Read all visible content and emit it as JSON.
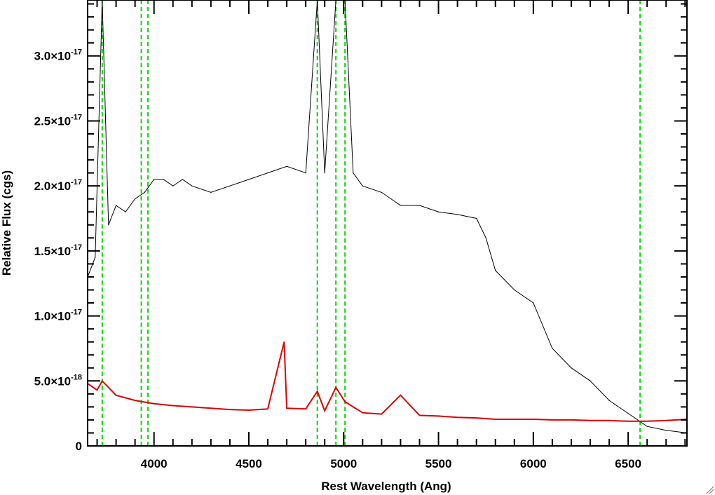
{
  "chart_data": {
    "type": "line",
    "title": "",
    "xlabel": "Rest Wavelength (Ang)",
    "ylabel": "Relative Flux (cgs)",
    "xlim": [
      3650,
      6810
    ],
    "ylim": [
      0,
      3.43e-17
    ],
    "grid": false,
    "legend": "none",
    "x_ticks": [
      {
        "value": 4000,
        "label": "4000"
      },
      {
        "value": 4500,
        "label": "4500"
      },
      {
        "value": 5000,
        "label": "5000"
      },
      {
        "value": 5500,
        "label": "5500"
      },
      {
        "value": 6000,
        "label": "6000"
      },
      {
        "value": 6500,
        "label": "6500"
      }
    ],
    "y_ticks": [
      {
        "value": 0,
        "mantissa": "0",
        "exponent": ""
      },
      {
        "value": 5e-18,
        "mantissa": "5.0×10",
        "exponent": "-18"
      },
      {
        "value": 1e-17,
        "mantissa": "1.0×10",
        "exponent": "-17"
      },
      {
        "value": 1.5e-17,
        "mantissa": "1.5×10",
        "exponent": "-17"
      },
      {
        "value": 2e-17,
        "mantissa": "2.0×10",
        "exponent": "-17"
      },
      {
        "value": 2.5e-17,
        "mantissa": "2.5×10",
        "exponent": "-17"
      },
      {
        "value": 3e-17,
        "mantissa": "3.0×10",
        "exponent": "-17"
      }
    ],
    "series": [
      {
        "color": "#000000",
        "points": [
          [
            3650,
            1.3e-17
          ],
          [
            3690,
            1.45e-17
          ],
          [
            3727,
            3.43e-17
          ],
          [
            3760,
            1.7e-17
          ],
          [
            3800,
            1.85e-17
          ],
          [
            3850,
            1.8e-17
          ],
          [
            3900,
            1.9e-17
          ],
          [
            3950,
            1.95e-17
          ],
          [
            4000,
            2.05e-17
          ],
          [
            4050,
            2.05e-17
          ],
          [
            4100,
            2e-17
          ],
          [
            4150,
            2.05e-17
          ],
          [
            4200,
            2e-17
          ],
          [
            4300,
            1.95e-17
          ],
          [
            4400,
            2e-17
          ],
          [
            4500,
            2.05e-17
          ],
          [
            4600,
            2.1e-17
          ],
          [
            4700,
            2.15e-17
          ],
          [
            4800,
            2.1e-17
          ],
          [
            4861,
            3.43e-17
          ],
          [
            4900,
            2.1e-17
          ],
          [
            4959,
            3.43e-17
          ],
          [
            5007,
            3.43e-17
          ],
          [
            5050,
            2.1e-17
          ],
          [
            5100,
            2e-17
          ],
          [
            5200,
            1.95e-17
          ],
          [
            5300,
            1.85e-17
          ],
          [
            5400,
            1.85e-17
          ],
          [
            5500,
            1.8e-17
          ],
          [
            5600,
            1.78e-17
          ],
          [
            5700,
            1.75e-17
          ],
          [
            5750,
            1.6e-17
          ],
          [
            5800,
            1.35e-17
          ],
          [
            5900,
            1.2e-17
          ],
          [
            6000,
            1.1e-17
          ],
          [
            6100,
            7.5e-18
          ],
          [
            6200,
            6e-18
          ],
          [
            6300,
            5e-18
          ],
          [
            6400,
            3.5e-18
          ],
          [
            6500,
            2.5e-18
          ],
          [
            6600,
            1.5e-18
          ],
          [
            6700,
            1.2e-18
          ],
          [
            6810,
            1e-18
          ]
        ]
      },
      {
        "color": "#dd0000",
        "points": [
          [
            3650,
            4.8e-18
          ],
          [
            3700,
            4.3e-18
          ],
          [
            3727,
            5e-18
          ],
          [
            3800,
            3.9e-18
          ],
          [
            3900,
            3.5e-18
          ],
          [
            4000,
            3.25e-18
          ],
          [
            4100,
            3.1e-18
          ],
          [
            4200,
            3e-18
          ],
          [
            4300,
            2.9e-18
          ],
          [
            4400,
            2.8e-18
          ],
          [
            4500,
            2.75e-18
          ],
          [
            4600,
            2.85e-18
          ],
          [
            4686,
            8e-18
          ],
          [
            4700,
            2.9e-18
          ],
          [
            4800,
            2.85e-18
          ],
          [
            4861,
            4.2e-18
          ],
          [
            4900,
            2.7e-18
          ],
          [
            4959,
            4.5e-18
          ],
          [
            5007,
            3.4e-18
          ],
          [
            5100,
            2.55e-18
          ],
          [
            5200,
            2.45e-18
          ],
          [
            5300,
            3.9e-18
          ],
          [
            5400,
            2.35e-18
          ],
          [
            5500,
            2.3e-18
          ],
          [
            5600,
            2.2e-18
          ],
          [
            5700,
            2.15e-18
          ],
          [
            5800,
            2.05e-18
          ],
          [
            5900,
            2.05e-18
          ],
          [
            6000,
            2.05e-18
          ],
          [
            6100,
            2e-18
          ],
          [
            6200,
            2e-18
          ],
          [
            6300,
            1.95e-18
          ],
          [
            6400,
            1.95e-18
          ],
          [
            6500,
            1.9e-18
          ],
          [
            6600,
            1.9e-18
          ],
          [
            6700,
            1.95e-18
          ],
          [
            6810,
            2.05e-18
          ]
        ]
      }
    ],
    "reference_lines": [
      {
        "x": 3727,
        "color": "#00dd00"
      },
      {
        "x": 3933,
        "color": "#00dd00"
      },
      {
        "x": 3968,
        "color": "#00dd00"
      },
      {
        "x": 4861,
        "color": "#00dd00"
      },
      {
        "x": 4959,
        "color": "#00dd00"
      },
      {
        "x": 5007,
        "color": "#00dd00"
      },
      {
        "x": 6563,
        "color": "#00dd00"
      }
    ]
  }
}
